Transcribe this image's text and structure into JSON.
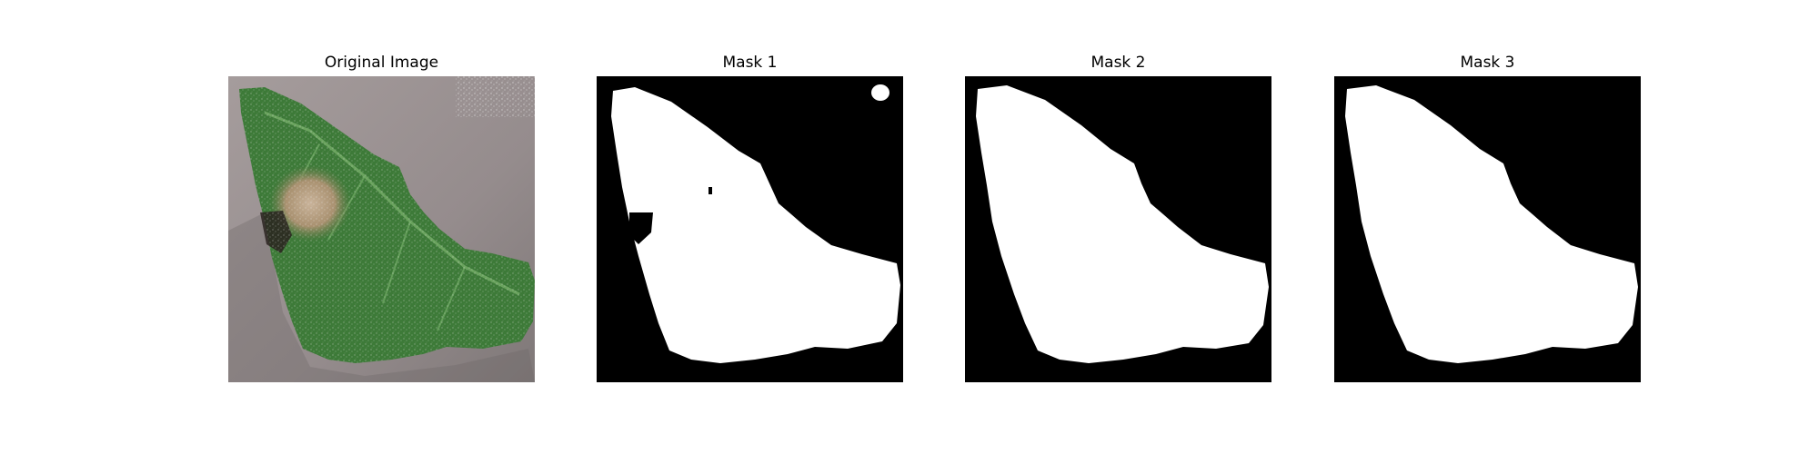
{
  "panels": [
    {
      "title": "Original Image"
    },
    {
      "title": "Mask 1"
    },
    {
      "title": "Mask 2"
    },
    {
      "title": "Mask 3"
    }
  ],
  "colors": {
    "background": "#ffffff",
    "mask_background": "#000000",
    "mask_foreground": "#ffffff",
    "leaf": "#3f7a3a",
    "surface": "#9a9292"
  }
}
